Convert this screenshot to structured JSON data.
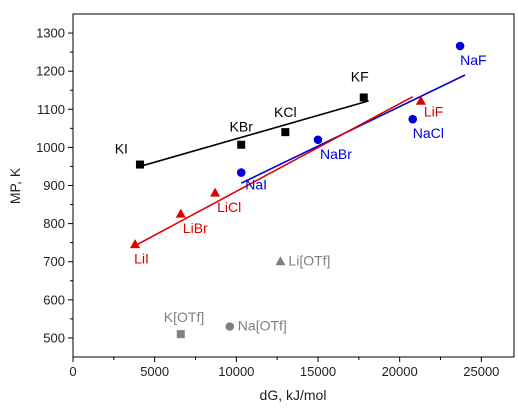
{
  "chart_data": {
    "type": "scatter",
    "xlabel": "dG, kJ/mol",
    "ylabel": "MP, K",
    "xlim": [
      0,
      27000
    ],
    "ylim": [
      450,
      1350
    ],
    "x_ticks": [
      0,
      5000,
      10000,
      15000,
      20000,
      25000
    ],
    "y_ticks": [
      500,
      600,
      700,
      800,
      900,
      1000,
      1100,
      1200,
      1300
    ],
    "grid": false,
    "legend": "none",
    "series": [
      {
        "group": "K",
        "color": "#000000",
        "marker": "square",
        "points": [
          {
            "label": "KI",
            "x": 4100,
            "y": 955
          },
          {
            "label": "KBr",
            "x": 10300,
            "y": 1007
          },
          {
            "label": "KCl",
            "x": 13000,
            "y": 1040
          },
          {
            "label": "KF",
            "x": 17800,
            "y": 1131
          }
        ],
        "fit": {
          "x": [
            4100,
            18100
          ],
          "y": [
            950,
            1122
          ]
        }
      },
      {
        "group": "Na",
        "color": "#0000dd",
        "marker": "circle",
        "points": [
          {
            "label": "NaI",
            "x": 10300,
            "y": 934
          },
          {
            "label": "NaBr",
            "x": 15000,
            "y": 1020
          },
          {
            "label": "NaCl",
            "x": 20800,
            "y": 1074
          },
          {
            "label": "NaF",
            "x": 23700,
            "y": 1266
          }
        ],
        "fit": {
          "x": [
            10300,
            24000
          ],
          "y": [
            906,
            1190
          ]
        }
      },
      {
        "group": "Li",
        "color": "#dd0000",
        "marker": "triangle",
        "points": [
          {
            "label": "LiI",
            "x": 3800,
            "y": 745
          },
          {
            "label": "LiBr",
            "x": 6600,
            "y": 825
          },
          {
            "label": "LiCl",
            "x": 8700,
            "y": 880
          },
          {
            "label": "LiF",
            "x": 21300,
            "y": 1121
          }
        ],
        "fit": {
          "x": [
            3800,
            20800
          ],
          "y": [
            742,
            1133
          ]
        }
      },
      {
        "group": "OTf",
        "color": "#808080",
        "marker": "mixed",
        "points": [
          {
            "label": "Li[OTf]",
            "x": 12700,
            "y": 700,
            "marker": "triangle"
          },
          {
            "label": "K[OTf]",
            "x": 6600,
            "y": 510,
            "marker": "square"
          },
          {
            "label": "Na[OTf]",
            "x": 9600,
            "y": 530,
            "marker": "circle"
          }
        ]
      }
    ]
  }
}
